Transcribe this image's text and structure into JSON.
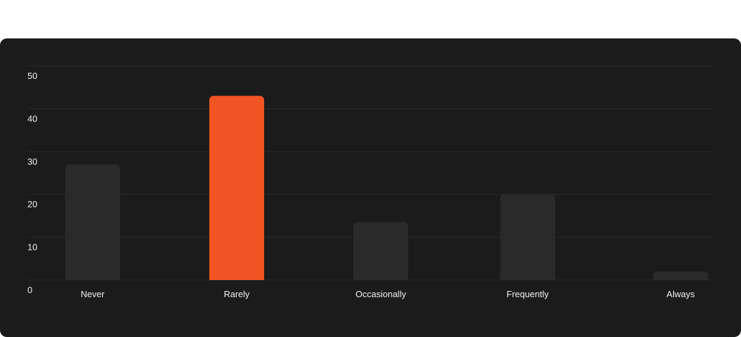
{
  "colors": {
    "background": "#1b1b1b",
    "bar_default": "#2a2a2a",
    "bar_highlight": "#f15422",
    "gridline": "#2b2b2b",
    "text": "#f2f2f2"
  },
  "chart_data": {
    "type": "bar",
    "title": "",
    "xlabel": "",
    "ylabel": "",
    "categories": [
      "Never",
      "Rarely",
      "Occasionally",
      "Frequently",
      "Always"
    ],
    "values": [
      27,
      43,
      13.5,
      20,
      2
    ],
    "highlight_index": 1,
    "ylim": [
      0,
      50
    ],
    "yticks": [
      0,
      10,
      20,
      30,
      40,
      50
    ],
    "grid": true,
    "legend": "none"
  }
}
